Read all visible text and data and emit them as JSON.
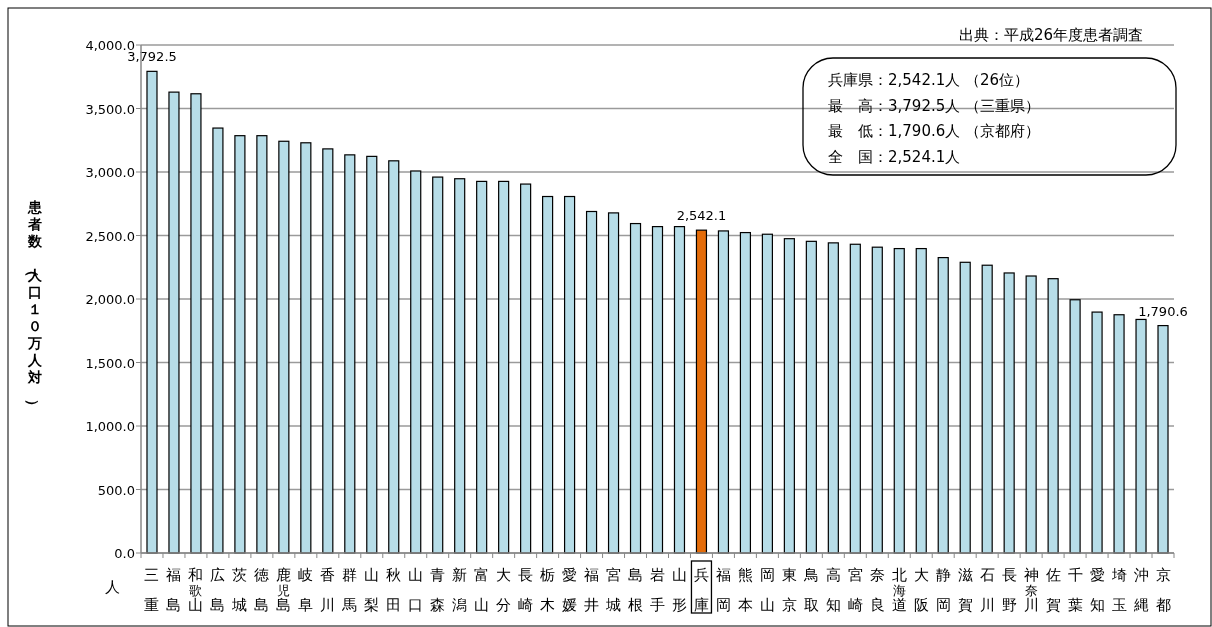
{
  "chart_data": {
    "type": "bar",
    "ylabel": "患者数（人口１０万人対）",
    "categories": [
      "三重",
      "福島",
      "和歌山",
      "広島",
      "茨城",
      "徳島",
      "鹿児島",
      "岐阜",
      "香川",
      "群馬",
      "山梨",
      "秋田",
      "山口",
      "青森",
      "新潟",
      "富山",
      "大分",
      "長崎",
      "栃木",
      "愛媛",
      "福井",
      "宮城",
      "島根",
      "岩手",
      "山形",
      "兵庫",
      "福岡",
      "熊本",
      "岡山",
      "東京",
      "鳥取",
      "高知",
      "宮崎",
      "奈良",
      "北海道",
      "大阪",
      "静岡",
      "滋賀",
      "石川",
      "長野",
      "神奈川",
      "佐賀",
      "千葉",
      "愛知",
      "埼玉",
      "沖縄",
      "京都"
    ],
    "values": [
      3792.5,
      3629,
      3616,
      3346,
      3286,
      3286,
      3242,
      3230,
      3182,
      3135,
      3123,
      3088,
      3008,
      2960,
      2947,
      2926,
      2926,
      2905,
      2807,
      2807,
      2689,
      2678,
      2594,
      2570,
      2570,
      2542.1,
      2536,
      2523,
      2510,
      2475,
      2454,
      2442,
      2431,
      2408,
      2397,
      2397,
      2326,
      2289,
      2266,
      2205,
      2181,
      2160,
      1994,
      1897,
      1876,
      1839,
      1790.6
    ],
    "colors": [
      "#b7dde8",
      "#b7dde8",
      "#b7dde8",
      "#b7dde8",
      "#b7dde8",
      "#b7dde8",
      "#b7dde8",
      "#b7dde8",
      "#b7dde8",
      "#b7dde8",
      "#b7dde8",
      "#b7dde8",
      "#b7dde8",
      "#b7dde8",
      "#b7dde8",
      "#b7dde8",
      "#b7dde8",
      "#b7dde8",
      "#b7dde8",
      "#b7dde8",
      "#b7dde8",
      "#b7dde8",
      "#b7dde8",
      "#b7dde8",
      "#b7dde8",
      "#e46c0a",
      "#b7dde8",
      "#b7dde8",
      "#b7dde8",
      "#b7dde8",
      "#b7dde8",
      "#b7dde8",
      "#b7dde8",
      "#b7dde8",
      "#b7dde8",
      "#b7dde8",
      "#b7dde8",
      "#b7dde8",
      "#b7dde8",
      "#b7dde8",
      "#b7dde8",
      "#b7dde8",
      "#b7dde8",
      "#b7dde8",
      "#b7dde8",
      "#b7dde8",
      "#b7dde8"
    ],
    "value_labels": [
      "3,792.5",
      null,
      null,
      null,
      null,
      null,
      null,
      null,
      null,
      null,
      null,
      null,
      null,
      null,
      null,
      null,
      null,
      null,
      null,
      null,
      null,
      null,
      null,
      null,
      null,
      "2,542.1",
      null,
      null,
      null,
      null,
      null,
      null,
      null,
      null,
      null,
      null,
      null,
      null,
      null,
      null,
      null,
      null,
      null,
      null,
      null,
      null,
      "1,790.6"
    ],
    "ylim": [
      0,
      4000
    ],
    "yticks": [
      {
        "value": 0,
        "label": "0.0"
      },
      {
        "value": 500,
        "label": "500.0"
      },
      {
        "value": 1000,
        "label": "1,000.0"
      },
      {
        "value": 1500,
        "label": "1,500.0"
      },
      {
        "value": 2000,
        "label": "2,000.0"
      },
      {
        "value": 2500,
        "label": "2,500.0"
      },
      {
        "value": 3000,
        "label": "3,000.0"
      },
      {
        "value": 3500,
        "label": "3,500.0"
      },
      {
        "value": 4000,
        "label": "4,000.0"
      }
    ],
    "grid": "y",
    "annotations": [
      "出典：平成26年度患者調査",
      "人",
      "兵庫県：2,542.1人 （26位）",
      "最　高：3,792.5人 （三重県）",
      "最　低：1,790.6人 （京都府）",
      "全　国：2,524.1人"
    ]
  }
}
